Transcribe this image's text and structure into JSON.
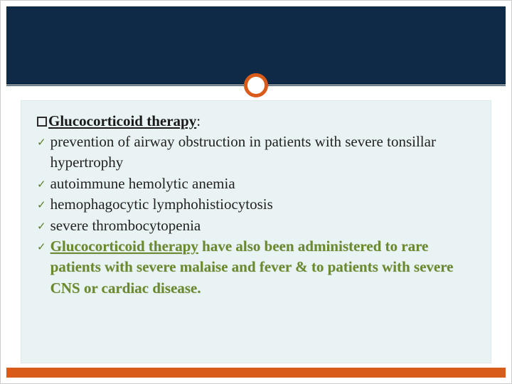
{
  "colors": {
    "top_bar": "#0e2a47",
    "accent": "#d95b1a",
    "content_bg": "#e9f3f3",
    "check": "#5e7a2a",
    "highlight_text": "#6b8a2e",
    "body_text": "#222222"
  },
  "heading": {
    "text": "Glucocorticoid therapy",
    "suffix": ":"
  },
  "items": [
    {
      "text": " prevention of airway obstruction in patients with severe tonsillar hypertrophy",
      "highlight": false
    },
    {
      "text": "autoimmune hemolytic anemia",
      "highlight": false
    },
    {
      "text": " hemophagocytic lymphohistiocytosis",
      "highlight": false
    },
    {
      "text": " severe thrombocytopenia",
      "highlight": false
    },
    {
      "text": "Glucocorticoid therapy have also been administered to rare patients with severe malaise and fever & to patients with severe CNS or cardiac disease.",
      "highlight": true,
      "underline_prefix": "Glucocorticoid therapy"
    }
  ],
  "check_glyph": "✓"
}
